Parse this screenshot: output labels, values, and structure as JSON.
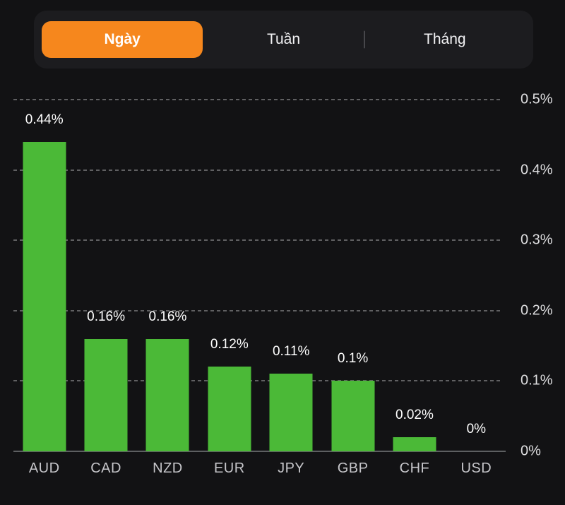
{
  "tabs": {
    "items": [
      {
        "label": "Ngày",
        "active": true
      },
      {
        "label": "Tuần",
        "active": false
      },
      {
        "label": "Tháng",
        "active": false
      }
    ]
  },
  "colors": {
    "accent_orange": "#F6871D",
    "bar_green": "#4BB937",
    "background": "#121214",
    "tab_container": "#1C1C1F"
  },
  "chart_data": {
    "type": "bar",
    "title": "",
    "xlabel": "",
    "ylabel": "",
    "categories": [
      "AUD",
      "CAD",
      "NZD",
      "EUR",
      "JPY",
      "GBP",
      "CHF",
      "USD"
    ],
    "values": [
      0.44,
      0.16,
      0.16,
      0.12,
      0.11,
      0.1,
      0.02,
      0
    ],
    "value_labels": [
      "0.44%",
      "0.16%",
      "0.16%",
      "0.12%",
      "0.11%",
      "0.1%",
      "0.02%",
      "0%"
    ],
    "y_ticks": [
      "0.5%",
      "0.4%",
      "0.3%",
      "0.2%",
      "0.1%",
      "0%"
    ],
    "y_tick_values": [
      0.5,
      0.4,
      0.3,
      0.2,
      0.1,
      0
    ],
    "ylim": [
      0,
      0.5
    ],
    "grid": "dashed horizontal, solid baseline",
    "legend": "none",
    "axis_side": "right",
    "bar_color": "#4BB937"
  }
}
